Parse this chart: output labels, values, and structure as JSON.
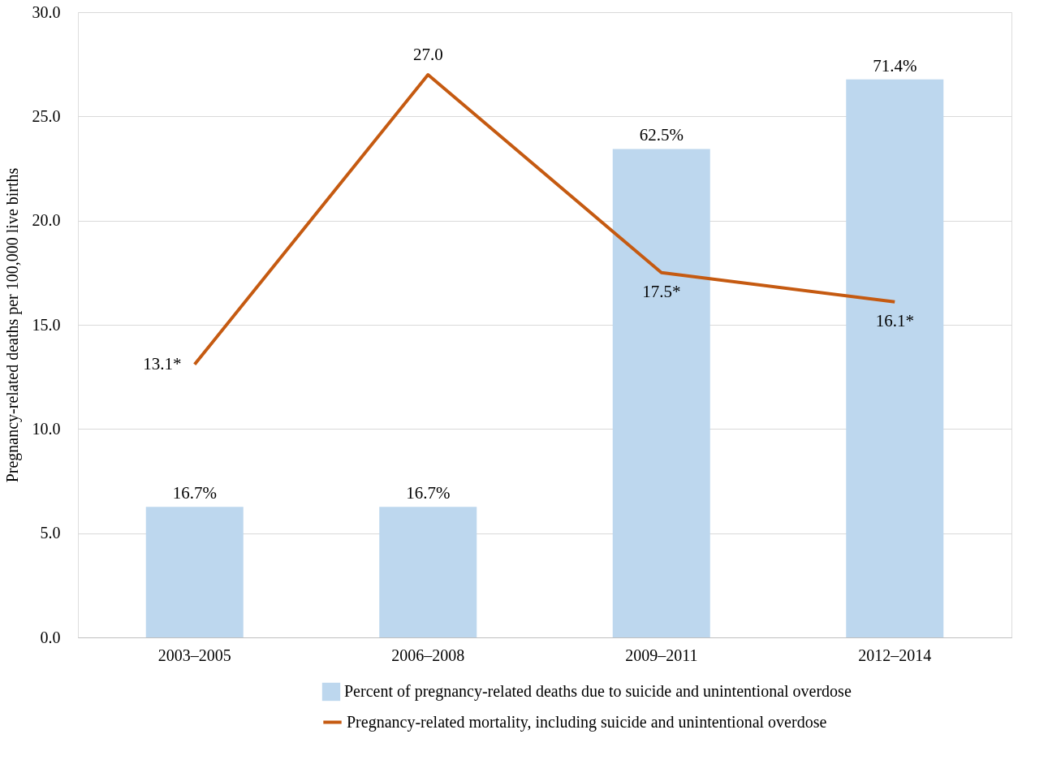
{
  "chart_data": {
    "type": "bar",
    "ylabel": "Pregnancy-related deaths per 100,000 live births",
    "categories": [
      "2003–2005",
      "2006–2008",
      "2009–2011",
      "2012–2014"
    ],
    "series": [
      {
        "name": "Percent of pregnancy-related deaths due to suicide and unintentional overdose",
        "axis": "y2",
        "color": "#bdd7ee",
        "values": [
          16.7,
          16.7,
          62.5,
          71.4
        ],
        "value_labels": [
          "16.7%",
          "16.7%",
          "62.5%",
          "71.4%"
        ]
      },
      {
        "name": "Pregnancy-related mortality, including suicide and unintentional overdose",
        "type": "line",
        "color": "#c55a11",
        "values": [
          13.1,
          27.0,
          17.5,
          16.1
        ],
        "value_labels": [
          "13.1*",
          "27.0",
          "17.5*",
          "16.1*"
        ]
      }
    ],
    "ylim": [
      0,
      30
    ],
    "yticks": [
      {
        "value": 0,
        "label": "0.0"
      },
      {
        "value": 5,
        "label": "5.0"
      },
      {
        "value": 10,
        "label": "10.0"
      },
      {
        "value": 15,
        "label": "15.0"
      },
      {
        "value": 20,
        "label": "20.0"
      },
      {
        "value": 25,
        "label": "25.0"
      },
      {
        "value": 30,
        "label": "30.0"
      }
    ],
    "y2lim": [
      0,
      80
    ],
    "grid": "y",
    "legend": "bottom",
    "marker": "none",
    "line_style": "solid"
  }
}
